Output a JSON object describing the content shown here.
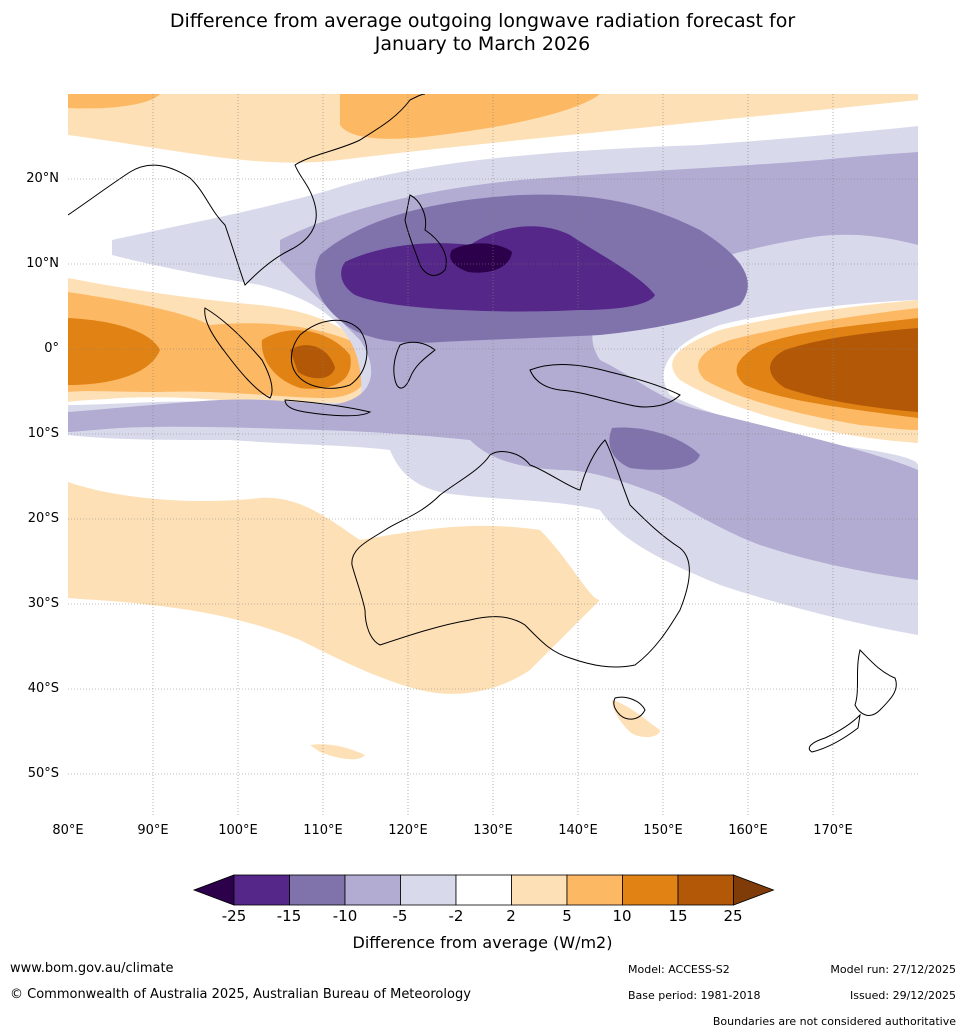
{
  "title_line1": "Difference from average outgoing longwave radiation forecast for",
  "title_line2": "January to March 2026",
  "map": {
    "lon_range": [
      80,
      180
    ],
    "lat_range": [
      -55,
      30
    ],
    "lat_ticks": [
      "20°N",
      "10°N",
      "0°",
      "10°S",
      "20°S",
      "30°S",
      "40°S",
      "50°S"
    ],
    "lon_ticks": [
      "80°E",
      "90°E",
      "100°E",
      "110°E",
      "120°E",
      "130°E",
      "140°E",
      "150°E",
      "160°E",
      "170°E"
    ]
  },
  "legend": {
    "title": "Difference from average (W/m2)",
    "tick_labels": [
      "-25",
      "-15",
      "-10",
      "-5",
      "-2",
      "2",
      "5",
      "10",
      "15",
      "25"
    ],
    "bins": [
      {
        "range": "< -25",
        "color": "#2d004b"
      },
      {
        "range": "-25 to -15",
        "color": "#542788"
      },
      {
        "range": "-15 to -10",
        "color": "#8073ac"
      },
      {
        "range": "-10 to -5",
        "color": "#b2abd2"
      },
      {
        "range": "-5 to -2",
        "color": "#d8daeb"
      },
      {
        "range": "-2 to 2",
        "color": "#ffffff"
      },
      {
        "range": "2 to 5",
        "color": "#fee0b6"
      },
      {
        "range": "5 to 10",
        "color": "#fdb863"
      },
      {
        "range": "10 to 15",
        "color": "#e08214"
      },
      {
        "range": "15 to 25",
        "color": "#b35806"
      },
      {
        "range": "> 25",
        "color": "#7f3b08"
      }
    ]
  },
  "footer": {
    "website": "www.bom.gov.au/climate",
    "copyright": "© Commonwealth of Australia 2025, Australian Bureau of Meteorology",
    "model": "Model: ACCESS-S2",
    "base_period": "Base period: 1981-2018",
    "model_run": "Model run: 27/12/2025",
    "issued": "Issued: 29/12/2025",
    "boundaries_note": "Boundaries are not considered authoritative"
  }
}
